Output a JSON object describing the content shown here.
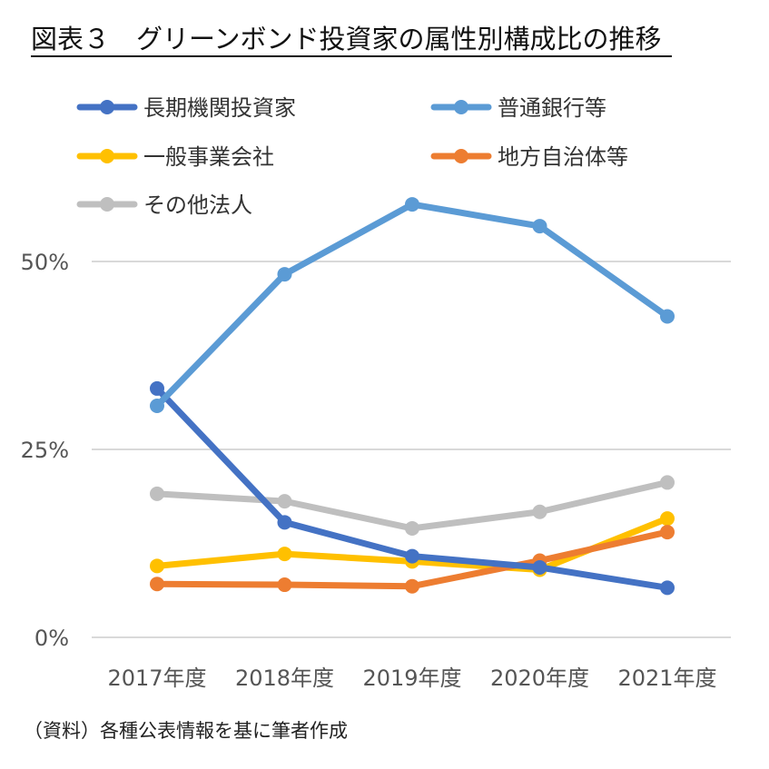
{
  "title": "図表３　グリーンボンド投資家の属性別構成比の推移",
  "source": "（資料）各種公表情報を基に筆者作成",
  "chart_data": {
    "type": "line",
    "categories": [
      "2017年度",
      "2018年度",
      "2019年度",
      "2020年度",
      "2021年度"
    ],
    "ylim": [
      0,
      0.5
    ],
    "yticks": [
      {
        "value": 0,
        "label": "0%"
      },
      {
        "value": 0.25,
        "label": "25%"
      },
      {
        "value": 0.5,
        "label": "50%"
      }
    ],
    "grid": true,
    "legend_position": "top",
    "series": [
      {
        "name": "長期機関投資家",
        "color": "#4472C4",
        "values": [
          0.331,
          0.153,
          0.108,
          0.093,
          0.066
        ]
      },
      {
        "name": "普通銀行等",
        "color": "#5B9BD5",
        "values": [
          0.308,
          0.483,
          0.576,
          0.547,
          0.427
        ]
      },
      {
        "name": "一般事業会社",
        "color": "#FFC000",
        "values": [
          0.095,
          0.111,
          0.101,
          0.09,
          0.158
        ]
      },
      {
        "name": "地方自治体等",
        "color": "#ED7D31",
        "values": [
          0.071,
          0.07,
          0.068,
          0.102,
          0.14
        ]
      },
      {
        "name": "その他法人",
        "color": "#BFBFBF",
        "values": [
          0.191,
          0.181,
          0.145,
          0.167,
          0.206
        ]
      }
    ],
    "draw_order": [
      4,
      2,
      3,
      0,
      1
    ]
  }
}
